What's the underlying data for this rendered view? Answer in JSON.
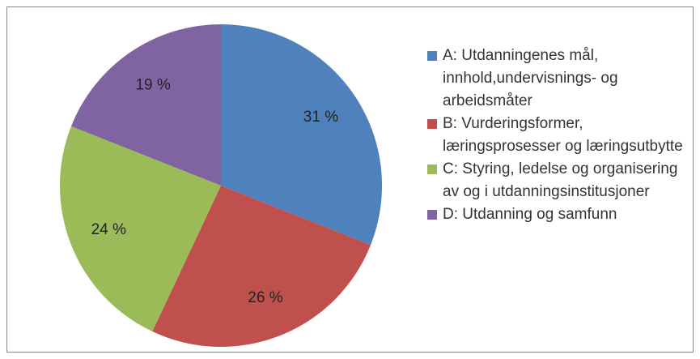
{
  "chart_data": {
    "type": "pie",
    "categories": [
      "A: Utdanningenes mål, innhold,undervisnings- og arbeidsmåter",
      "B: Vurderingsformer, læringsprosesser og læringsutbytte",
      "C: Styring, ledelse og organisering av og i utdanningsinstitusjoner",
      "D: Utdanning og samfunn"
    ],
    "values": [
      31,
      26,
      24,
      19
    ],
    "value_labels": [
      "31 %",
      "26 %",
      "24 %",
      "19 %"
    ],
    "colors": [
      "#4f81bd",
      "#c0504d",
      "#9bbb59",
      "#8064a2"
    ]
  }
}
